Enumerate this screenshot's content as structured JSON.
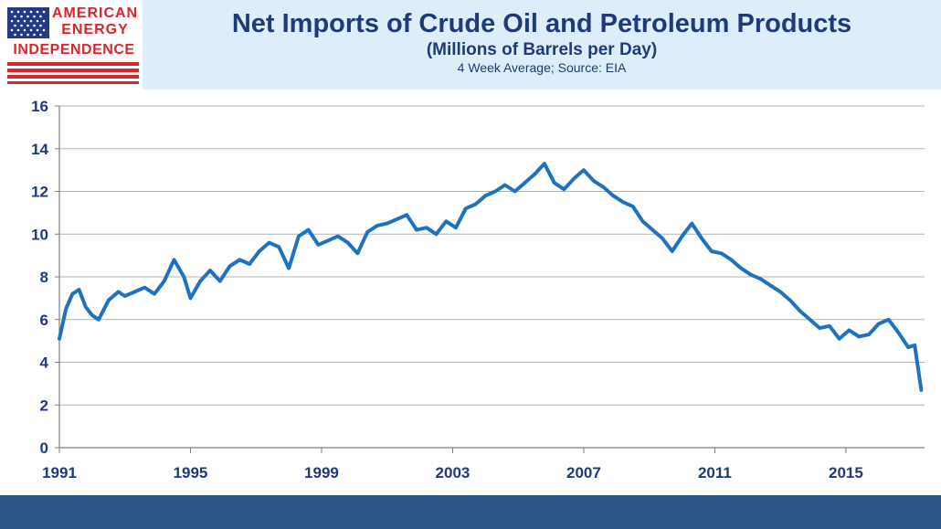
{
  "logo": {
    "line1": "AMERICAN",
    "line2": "ENERGY",
    "line3": "INDEPENDENCE",
    "colors": {
      "red": "#d8262e",
      "blue": "#233a8a"
    }
  },
  "header": {
    "title": "Net Imports of Crude Oil and Petroleum Products",
    "subtitle": "(Millions of Barrels per Day)",
    "note": "4 Week Average; Source: EIA"
  },
  "colors": {
    "line": "#1f72c0",
    "text": "#1f3a7a",
    "footer": "#2d5588",
    "header_bg": "#ddeefa"
  },
  "chart_data": {
    "type": "line",
    "title": "Net Imports of Crude Oil and Petroleum Products",
    "subtitle": "(Millions of Barrels per Day)",
    "xlim": [
      1991,
      2017.4
    ],
    "ylim": [
      0,
      16
    ],
    "x_ticks": [
      "1991",
      "1995",
      "1999",
      "2003",
      "2007",
      "2011",
      "2015"
    ],
    "y_ticks": [
      "0",
      "2",
      "4",
      "6",
      "8",
      "10",
      "12",
      "14",
      "16"
    ],
    "grid": true,
    "series": [
      {
        "x": [
          1991.0,
          1991.2,
          1991.4,
          1991.6,
          1991.8,
          1992.0,
          1992.2,
          1992.5,
          1992.8,
          1993.0,
          1993.3,
          1993.6,
          1993.9,
          1994.2,
          1994.5,
          1994.8,
          1995.0,
          1995.3,
          1995.6,
          1995.9,
          1996.2,
          1996.5,
          1996.8,
          1997.1,
          1997.4,
          1997.7,
          1998.0,
          1998.3,
          1998.6,
          1998.9,
          1999.2,
          1999.5,
          1999.8,
          2000.1,
          2000.4,
          2000.7,
          2001.0,
          2001.3,
          2001.6,
          2001.9,
          2002.2,
          2002.5,
          2002.8,
          2003.1,
          2003.4,
          2003.7,
          2004.0,
          2004.3,
          2004.6,
          2004.9,
          2005.2,
          2005.5,
          2005.8,
          2006.1,
          2006.4,
          2006.7,
          2007.0,
          2007.3,
          2007.6,
          2007.9,
          2008.2,
          2008.5,
          2008.8,
          2009.1,
          2009.4,
          2009.7,
          2010.0,
          2010.3,
          2010.6,
          2010.9,
          2011.2,
          2011.5,
          2011.8,
          2012.1,
          2012.4,
          2012.7,
          2013.0,
          2013.3,
          2013.6,
          2013.9,
          2014.2,
          2014.5,
          2014.8,
          2015.1,
          2015.4,
          2015.7,
          2016.0,
          2016.3,
          2016.6,
          2016.9,
          2017.1,
          2017.3
        ],
        "values": [
          5.1,
          6.5,
          7.2,
          7.4,
          6.6,
          6.2,
          6.0,
          6.9,
          7.3,
          7.1,
          7.3,
          7.5,
          7.2,
          7.8,
          8.8,
          8.0,
          7.0,
          7.8,
          8.3,
          7.8,
          8.5,
          8.8,
          8.6,
          9.2,
          9.6,
          9.4,
          8.4,
          9.9,
          10.2,
          9.5,
          9.7,
          9.9,
          9.6,
          9.1,
          10.1,
          10.4,
          10.5,
          10.7,
          10.9,
          10.2,
          10.3,
          10.0,
          10.6,
          10.3,
          11.2,
          11.4,
          11.8,
          12.0,
          12.3,
          12.0,
          12.4,
          12.8,
          13.3,
          12.4,
          12.1,
          12.6,
          13.0,
          12.5,
          12.2,
          11.8,
          11.5,
          11.3,
          10.6,
          10.2,
          9.8,
          9.2,
          9.9,
          10.5,
          9.8,
          9.2,
          9.1,
          8.8,
          8.4,
          8.1,
          7.9,
          7.6,
          7.3,
          6.9,
          6.4,
          6.0,
          5.6,
          5.7,
          5.1,
          5.5,
          5.2,
          5.3,
          5.8,
          6.0,
          5.4,
          4.7,
          4.8,
          2.7
        ]
      }
    ]
  }
}
